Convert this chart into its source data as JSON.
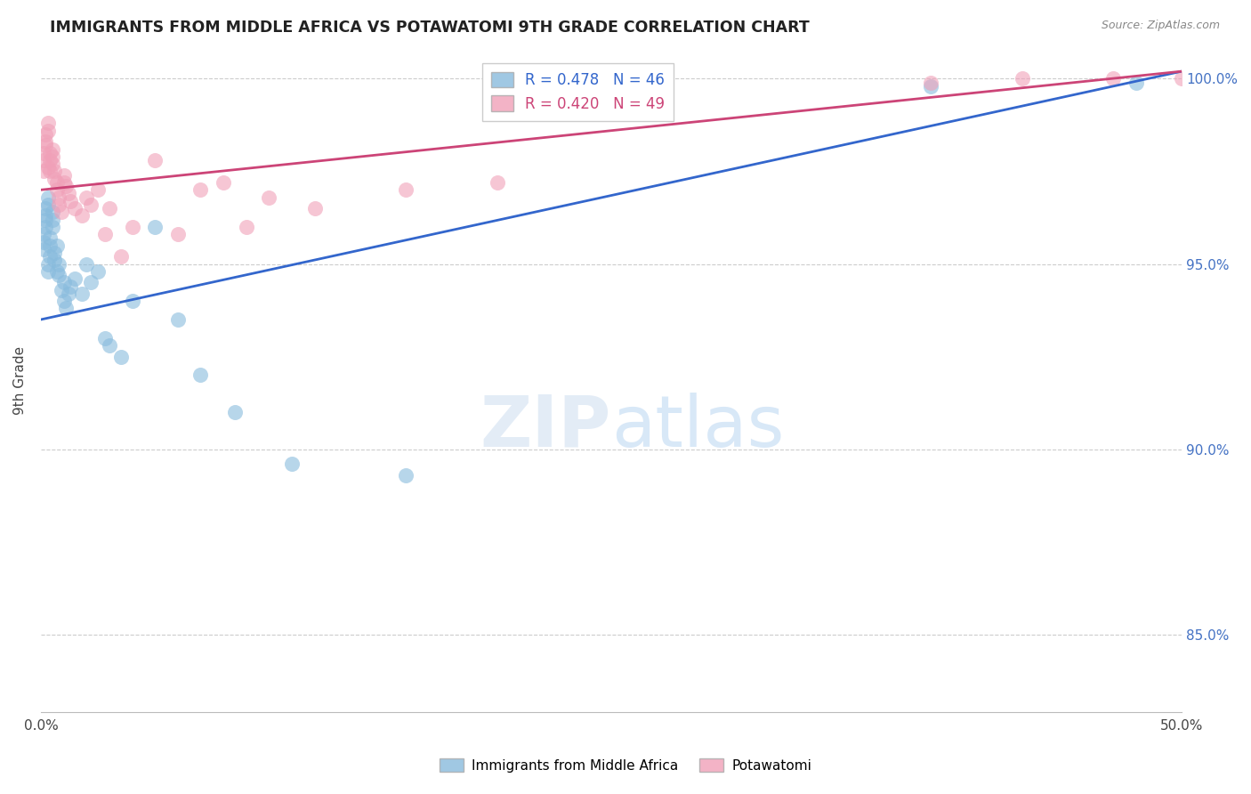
{
  "title": "IMMIGRANTS FROM MIDDLE AFRICA VS POTAWATOMI 9TH GRADE CORRELATION CHART",
  "source": "Source: ZipAtlas.com",
  "ylabel": "9th Grade",
  "xmin": 0.0,
  "xmax": 0.5,
  "ymin": 0.829,
  "ymax": 1.008,
  "yticks": [
    0.85,
    0.9,
    0.95,
    1.0
  ],
  "ytick_labels": [
    "85.0%",
    "90.0%",
    "95.0%",
    "100.0%"
  ],
  "xtick_positions": [
    0.0,
    0.1,
    0.2,
    0.3,
    0.4,
    0.5
  ],
  "xtick_labels": [
    "0.0%",
    "",
    "",
    "",
    "",
    "50.0%"
  ],
  "blue_color": "#88bbdd",
  "pink_color": "#f0a0b8",
  "blue_line_color": "#3366cc",
  "pink_line_color": "#cc4477",
  "legend_R_blue": "0.478",
  "legend_N_blue": "46",
  "legend_R_pink": "0.420",
  "legend_N_pink": "49",
  "legend_label_blue": "Immigrants from Middle Africa",
  "legend_label_pink": "Potawatomi",
  "blue_line_x0": 0.0,
  "blue_line_y0": 0.935,
  "blue_line_x1": 0.5,
  "blue_line_y1": 1.002,
  "pink_line_x0": 0.0,
  "pink_line_y0": 0.97,
  "pink_line_x1": 0.5,
  "pink_line_y1": 1.002,
  "blue_x": [
    0.001,
    0.001,
    0.001,
    0.002,
    0.002,
    0.002,
    0.002,
    0.003,
    0.003,
    0.003,
    0.003,
    0.004,
    0.004,
    0.004,
    0.005,
    0.005,
    0.005,
    0.006,
    0.006,
    0.007,
    0.007,
    0.008,
    0.008,
    0.009,
    0.01,
    0.01,
    0.011,
    0.012,
    0.013,
    0.015,
    0.018,
    0.02,
    0.022,
    0.025,
    0.028,
    0.03,
    0.035,
    0.04,
    0.05,
    0.06,
    0.07,
    0.085,
    0.11,
    0.16,
    0.39,
    0.48
  ],
  "blue_y": [
    0.954,
    0.956,
    0.958,
    0.96,
    0.962,
    0.963,
    0.965,
    0.966,
    0.968,
    0.95,
    0.948,
    0.952,
    0.955,
    0.957,
    0.96,
    0.962,
    0.964,
    0.951,
    0.953,
    0.955,
    0.948,
    0.95,
    0.947,
    0.943,
    0.945,
    0.94,
    0.938,
    0.942,
    0.944,
    0.946,
    0.942,
    0.95,
    0.945,
    0.948,
    0.93,
    0.928,
    0.925,
    0.94,
    0.96,
    0.935,
    0.92,
    0.91,
    0.896,
    0.893,
    0.998,
    0.999
  ],
  "pink_x": [
    0.001,
    0.001,
    0.001,
    0.002,
    0.002,
    0.002,
    0.003,
    0.003,
    0.003,
    0.004,
    0.004,
    0.004,
    0.005,
    0.005,
    0.005,
    0.006,
    0.006,
    0.007,
    0.007,
    0.008,
    0.008,
    0.009,
    0.01,
    0.01,
    0.011,
    0.012,
    0.013,
    0.015,
    0.018,
    0.02,
    0.022,
    0.025,
    0.028,
    0.03,
    0.035,
    0.04,
    0.05,
    0.06,
    0.07,
    0.08,
    0.09,
    0.1,
    0.12,
    0.16,
    0.2,
    0.39,
    0.43,
    0.47,
    0.5
  ],
  "pink_y": [
    0.975,
    0.978,
    0.98,
    0.982,
    0.983,
    0.985,
    0.986,
    0.988,
    0.976,
    0.978,
    0.98,
    0.975,
    0.977,
    0.979,
    0.981,
    0.975,
    0.973,
    0.972,
    0.97,
    0.968,
    0.966,
    0.964,
    0.972,
    0.974,
    0.971,
    0.969,
    0.967,
    0.965,
    0.963,
    0.968,
    0.966,
    0.97,
    0.958,
    0.965,
    0.952,
    0.96,
    0.978,
    0.958,
    0.97,
    0.972,
    0.96,
    0.968,
    0.965,
    0.97,
    0.972,
    0.999,
    1.0,
    1.0,
    1.0
  ]
}
